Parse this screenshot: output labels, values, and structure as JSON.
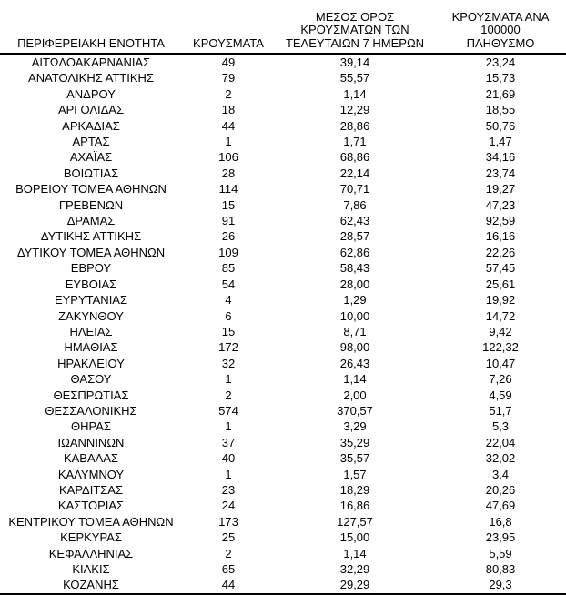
{
  "table": {
    "title_semantic": "cases-by-regional-unit-table",
    "columns": [
      {
        "label": "ΠΕΡΙΦΕΡΕΙΑΚΗ ΕΝΟΤΗΤΑ"
      },
      {
        "label": "ΚΡΟΥΣΜΑΤΑ"
      },
      {
        "label": "ΜΕΣΟΣ ΟΡΟΣ\nΚΡΟΥΣΜΑΤΩΝ ΤΩΝ\nΤΕΛΕΥΤΑΙΩΝ 7 ΗΜΕΡΩΝ"
      },
      {
        "label": "ΚΡΟΥΣΜΑΤΑ ΑΝΑ 100000\nΠΛΗΘΥΣΜΟ"
      }
    ],
    "rows": [
      [
        "ΑΙΤΩΛΟΑΚΑΡΝΑΝΙΑΣ",
        "49",
        "39,14",
        "23,24"
      ],
      [
        "ΑΝΑΤΟΛΙΚΗΣ ΑΤΤΙΚΗΣ",
        "79",
        "55,57",
        "15,73"
      ],
      [
        "ΑΝΔΡΟΥ",
        "2",
        "1,14",
        "21,69"
      ],
      [
        "ΑΡΓΟΛΙΔΑΣ",
        "18",
        "12,29",
        "18,55"
      ],
      [
        "ΑΡΚΑΔΙΑΣ",
        "44",
        "28,86",
        "50,76"
      ],
      [
        "ΑΡΤΑΣ",
        "1",
        "1,71",
        "1,47"
      ],
      [
        "ΑΧΑΪΑΣ",
        "106",
        "68,86",
        "34,16"
      ],
      [
        "ΒΟΙΩΤΙΑΣ",
        "28",
        "22,14",
        "23,74"
      ],
      [
        "ΒΟΡΕΙΟΥ ΤΟΜΕΑ ΑΘΗΝΩΝ",
        "114",
        "70,71",
        "19,27"
      ],
      [
        "ΓΡΕΒΕΝΩΝ",
        "15",
        "7,86",
        "47,23"
      ],
      [
        "ΔΡΑΜΑΣ",
        "91",
        "62,43",
        "92,59"
      ],
      [
        "ΔΥΤΙΚΗΣ ΑΤΤΙΚΗΣ",
        "26",
        "28,57",
        "16,16"
      ],
      [
        "ΔΥΤΙΚΟΥ ΤΟΜΕΑ ΑΘΗΝΩΝ",
        "109",
        "62,86",
        "22,26"
      ],
      [
        "ΕΒΡΟΥ",
        "85",
        "58,43",
        "57,45"
      ],
      [
        "ΕΥΒΟΙΑΣ",
        "54",
        "28,00",
        "25,61"
      ],
      [
        "ΕΥΡΥΤΑΝΙΑΣ",
        "4",
        "1,29",
        "19,92"
      ],
      [
        "ΖΑΚΥΝΘΟΥ",
        "6",
        "10,00",
        "14,72"
      ],
      [
        "ΗΛΕΙΑΣ",
        "15",
        "8,71",
        "9,42"
      ],
      [
        "ΗΜΑΘΙΑΣ",
        "172",
        "98,00",
        "122,32"
      ],
      [
        "ΗΡΑΚΛΕΙΟΥ",
        "32",
        "26,43",
        "10,47"
      ],
      [
        "ΘΑΣΟΥ",
        "1",
        "1,14",
        "7,26"
      ],
      [
        "ΘΕΣΠΡΩΤΙΑΣ",
        "2",
        "2,00",
        "4,59"
      ],
      [
        "ΘΕΣΣΑΛΟΝΙΚΗΣ",
        "574",
        "370,57",
        "51,7"
      ],
      [
        "ΘΗΡΑΣ",
        "1",
        "3,29",
        "5,3"
      ],
      [
        "ΙΩΑΝΝΙΝΩΝ",
        "37",
        "35,29",
        "22,04"
      ],
      [
        "ΚΑΒΑΛΑΣ",
        "40",
        "35,57",
        "32,02"
      ],
      [
        "ΚΑΛΥΜΝΟΥ",
        "1",
        "1,57",
        "3,4"
      ],
      [
        "ΚΑΡΔΙΤΣΑΣ",
        "23",
        "18,29",
        "20,26"
      ],
      [
        "ΚΑΣΤΟΡΙΑΣ",
        "24",
        "16,86",
        "47,69"
      ],
      [
        "ΚΕΝΤΡΙΚΟΥ ΤΟΜΕΑ ΑΘΗΝΩΝ",
        "173",
        "127,57",
        "16,8"
      ],
      [
        "ΚΕΡΚΥΡΑΣ",
        "25",
        "15,00",
        "23,95"
      ],
      [
        "ΚΕΦΑΛΛΗΝΙΑΣ",
        "2",
        "1,14",
        "5,59"
      ],
      [
        "ΚΙΛΚΙΣ",
        "65",
        "32,29",
        "80,83"
      ],
      [
        "ΚΟΖΑΝΗΣ",
        "44",
        "29,29",
        "29,3"
      ]
    ],
    "colors": {
      "text": "#000000",
      "background": "#ffffff",
      "rule": "#000000"
    }
  }
}
